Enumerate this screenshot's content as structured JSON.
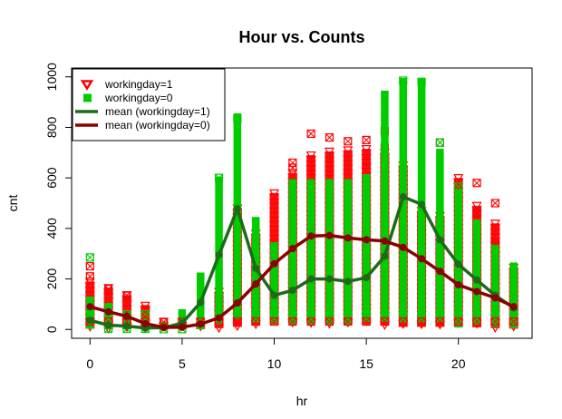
{
  "chart_data": {
    "type": "scatter",
    "title": "Hour vs. Counts",
    "xlabel": "hr",
    "ylabel": "cnt",
    "xlim": [
      -1,
      24
    ],
    "ylim": [
      -35,
      1035
    ],
    "xticks": [
      0,
      5,
      10,
      15,
      20
    ],
    "yticks": [
      0,
      200,
      400,
      600,
      800,
      1000
    ],
    "grid": false,
    "legend_position": "top-left",
    "legend": [
      {
        "label": "workingday=1",
        "kind": "point",
        "marker": "triangle-down",
        "color": "#ff0000"
      },
      {
        "label": "workingday=0",
        "kind": "point",
        "marker": "square",
        "color": "#00cd00"
      },
      {
        "label": "mean (workingday=1)",
        "kind": "line",
        "color": "#1a6b1a"
      },
      {
        "label": "mean (workingday=0)",
        "kind": "line",
        "color": "#8b0000"
      }
    ],
    "scatter_ranges": {
      "hours": [
        0,
        1,
        2,
        3,
        4,
        5,
        6,
        7,
        8,
        9,
        10,
        11,
        12,
        13,
        14,
        15,
        16,
        17,
        18,
        19,
        20,
        21,
        22,
        23
      ],
      "red_min": [
        3,
        1,
        1,
        1,
        1,
        1,
        2,
        5,
        10,
        15,
        20,
        25,
        25,
        22,
        20,
        20,
        15,
        10,
        10,
        10,
        10,
        8,
        5,
        3
      ],
      "red_max": [
        190,
        165,
        135,
        95,
        30,
        30,
        30,
        150,
        480,
        380,
        540,
        620,
        690,
        705,
        710,
        715,
        700,
        650,
        470,
        450,
        600,
        490,
        420,
        245
      ],
      "green_min": [
        5,
        2,
        2,
        1,
        1,
        2,
        10,
        20,
        40,
        35,
        30,
        30,
        30,
        30,
        30,
        30,
        30,
        30,
        40,
        30,
        20,
        15,
        10,
        5
      ],
      "green_max": [
        115,
        90,
        50,
        30,
        15,
        65,
        210,
        590,
        840,
        430,
        330,
        580,
        580,
        580,
        580,
        600,
        930,
        980,
        980,
        700,
        540,
        420,
        320,
        250
      ],
      "outliers_red": [
        [
          0,
          250
        ],
        [
          0,
          210
        ],
        [
          1,
          160
        ],
        [
          2,
          135
        ],
        [
          3,
          80
        ],
        [
          11,
          660
        ],
        [
          11,
          640
        ],
        [
          12,
          775
        ],
        [
          13,
          760
        ],
        [
          14,
          745
        ],
        [
          15,
          750
        ],
        [
          16,
          785
        ],
        [
          16,
          720
        ],
        [
          19,
          740
        ],
        [
          20,
          565
        ],
        [
          21,
          580
        ],
        [
          21,
          460
        ],
        [
          22,
          500
        ],
        [
          22,
          340
        ]
      ],
      "outliers_green": [
        [
          0,
          285
        ],
        [
          7,
          600
        ],
        [
          8,
          835
        ],
        [
          17,
          985
        ],
        [
          18,
          980
        ],
        [
          19,
          740
        ],
        [
          20,
          565
        ]
      ]
    },
    "series": [
      {
        "name": "mean (workingday=1)",
        "color": "#1a6b1a",
        "x": [
          0,
          1,
          2,
          3,
          4,
          5,
          6,
          7,
          8,
          9,
          10,
          11,
          12,
          13,
          14,
          15,
          16,
          17,
          18,
          19,
          20,
          21,
          22,
          23
        ],
        "values": [
          36,
          17,
          13,
          6,
          7,
          25,
          107,
          295,
          478,
          242,
          135,
          155,
          200,
          200,
          190,
          205,
          290,
          525,
          495,
          355,
          258,
          196,
          135,
          85
        ]
      },
      {
        "name": "mean (workingday=0)",
        "color": "#8b0000",
        "x": [
          0,
          1,
          2,
          3,
          4,
          5,
          6,
          7,
          8,
          9,
          10,
          11,
          12,
          13,
          14,
          15,
          16,
          17,
          18,
          19,
          20,
          21,
          22,
          23
        ],
        "values": [
          90,
          70,
          52,
          23,
          8,
          9,
          21,
          46,
          105,
          180,
          260,
          320,
          370,
          372,
          362,
          355,
          350,
          325,
          280,
          230,
          177,
          150,
          125,
          90
        ]
      }
    ]
  }
}
